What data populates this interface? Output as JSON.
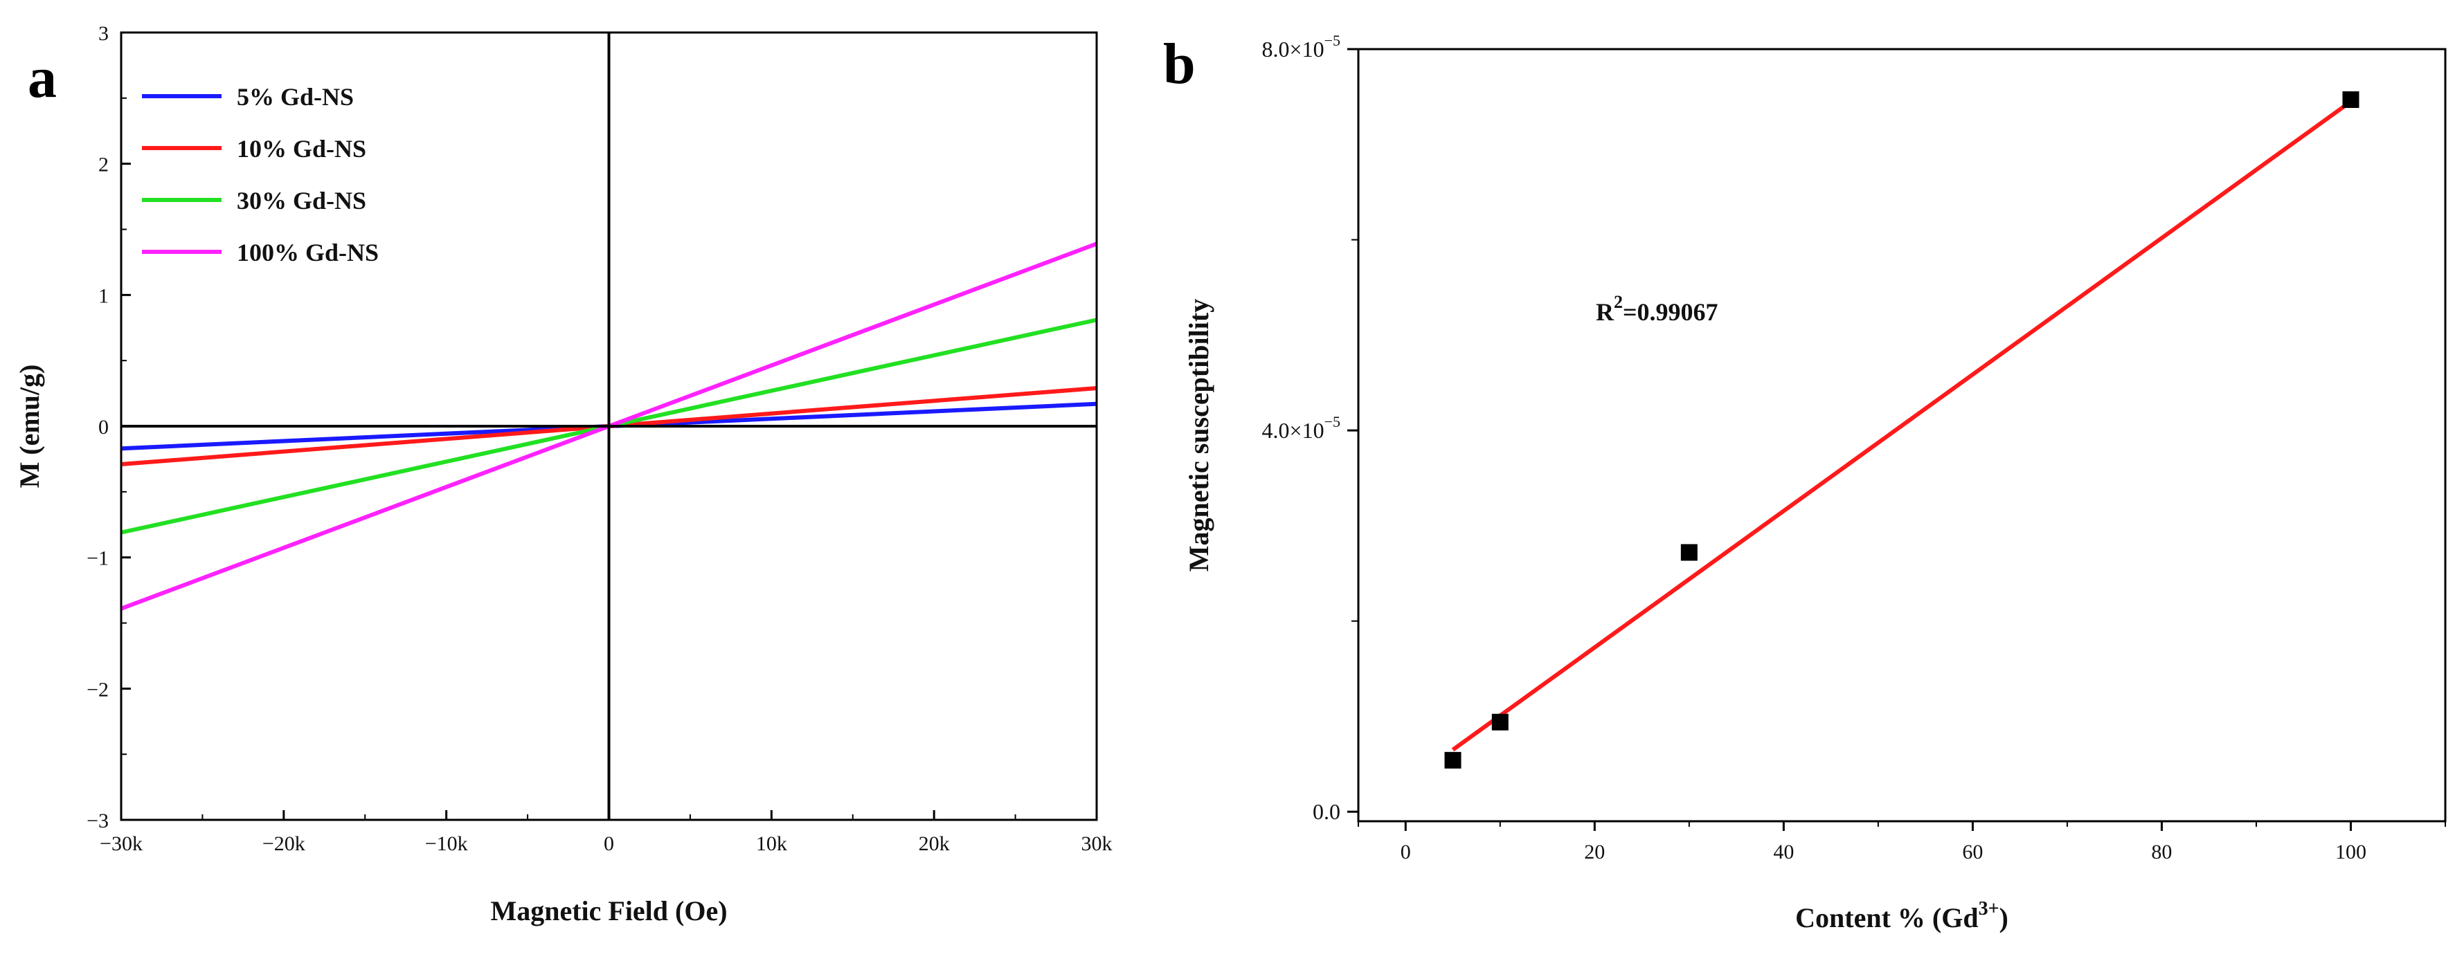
{
  "chart_data": [
    {
      "panel": "a",
      "type": "line",
      "title": "",
      "xlabel": "Magnetic Field (Oe)",
      "ylabel": "M (emu/g)",
      "xlim": [
        -30000,
        30000
      ],
      "ylim": [
        -3,
        3
      ],
      "x_ticks": [
        -30000,
        -20000,
        -10000,
        0,
        10000,
        20000,
        30000
      ],
      "x_tick_labels": [
        "−30k",
        "−20k",
        "−10k",
        "0",
        "10k",
        "20k",
        "30k"
      ],
      "y_ticks": [
        -3,
        -2,
        -1,
        0,
        1,
        2,
        3
      ],
      "y_tick_labels": [
        "−3",
        "−2",
        "−1",
        "0",
        "1",
        "2",
        "3"
      ],
      "legend_position": "top-left",
      "series": [
        {
          "name": "5% Gd-NS",
          "color": "#1a1aff",
          "x": [
            -30000,
            30000
          ],
          "y": [
            -0.17,
            0.17
          ]
        },
        {
          "name": "10% Gd-NS",
          "color": "#ff1a1a",
          "x": [
            -30000,
            30000
          ],
          "y": [
            -0.29,
            0.29
          ]
        },
        {
          "name": "30% Gd-NS",
          "color": "#22e022",
          "x": [
            -30000,
            30000
          ],
          "y": [
            -0.81,
            0.81
          ]
        },
        {
          "name": "100% Gd-NS",
          "color": "#ff22ff",
          "x": [
            -30000,
            30000
          ],
          "y": [
            -1.39,
            1.39
          ]
        }
      ]
    },
    {
      "panel": "b",
      "type": "scatter",
      "title": "",
      "xlabel_main": "Content % (Gd",
      "xlabel_sup": "3+",
      "xlabel_end": ")",
      "ylabel": "Magnetic susceptibility",
      "xlim": [
        -5,
        110
      ],
      "ylim": [
        -1e-06,
        8e-05
      ],
      "x_ticks": [
        0,
        20,
        40,
        60,
        80,
        100
      ],
      "x_tick_labels": [
        "0",
        "20",
        "40",
        "60",
        "80",
        "100"
      ],
      "y_labeled_ticks": [
        {
          "value": 0,
          "mantissa": "0.0",
          "times": "",
          "exponent": ""
        },
        {
          "value": 4e-05,
          "mantissa": "4.0",
          "times": "×10",
          "exponent": "−5"
        },
        {
          "value": 8e-05,
          "mantissa": "8.0",
          "times": "×10",
          "exponent": "−5"
        }
      ],
      "y_minor_ticks": [
        2e-05,
        6e-05
      ],
      "points": {
        "x": [
          5,
          10,
          30,
          100
        ],
        "y": [
          5.4e-06,
          9.4e-06,
          2.72e-05,
          7.47e-05
        ],
        "color": "#000000"
      },
      "fit": {
        "x": [
          5,
          100
        ],
        "y": [
          6.5e-06,
          7.45e-05
        ],
        "color": "#ff1a1a"
      },
      "annotation": {
        "prefix": "R",
        "sup": "2",
        "value": "=0.99067"
      }
    }
  ]
}
